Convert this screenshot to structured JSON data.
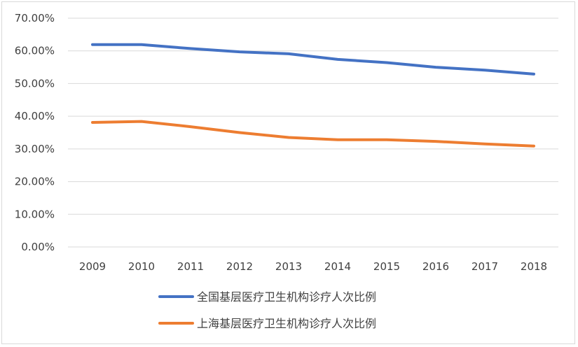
{
  "chart_data": {
    "type": "line",
    "categories": [
      "2009",
      "2010",
      "2011",
      "2012",
      "2013",
      "2014",
      "2015",
      "2016",
      "2017",
      "2018"
    ],
    "series": [
      {
        "name": "全国基层医疗卫生机构诊疗人次比例",
        "color": "#4472c4",
        "values": [
          61.9,
          61.9,
          60.7,
          59.7,
          59.1,
          57.4,
          56.4,
          55.0,
          54.1,
          52.9
        ]
      },
      {
        "name": "上海基层医疗卫生机构诊疗人次比例",
        "color": "#ed7d31",
        "values": [
          38.1,
          38.4,
          36.8,
          35.0,
          33.5,
          32.8,
          32.8,
          32.3,
          31.5,
          30.9
        ]
      }
    ],
    "y_ticks": [
      "0.00%",
      "10.00%",
      "20.00%",
      "30.00%",
      "40.00%",
      "50.00%",
      "60.00%",
      "70.00%"
    ],
    "ylim": [
      0,
      70
    ],
    "grid": true,
    "legend_position": "bottom",
    "title": "",
    "xlabel": "",
    "ylabel": ""
  }
}
